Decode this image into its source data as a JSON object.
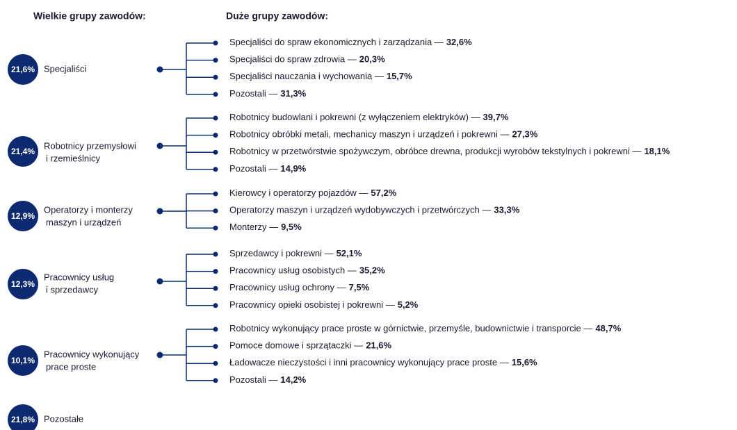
{
  "header": {
    "left": "Wielkie grupy zawodów:",
    "right": "Duże grupy zawodów:"
  },
  "groups": [
    {
      "pct": "21,6%",
      "name": [
        "Specjaliści"
      ],
      "items": [
        {
          "name": "Specjaliści do spraw ekonomicznych i zarządzania —",
          "value": "32,6%"
        },
        {
          "name": "Specjaliści do spraw zdrowia —",
          "value": "20,3%"
        },
        {
          "name": "Specjaliści nauczania i wychowania —",
          "value": "15,7%"
        },
        {
          "name": "Pozostali —",
          "value": "31,3%"
        }
      ]
    },
    {
      "pct": "21,4%",
      "name": [
        "Robotnicy przemysłowi",
        "i rzemieślnicy"
      ],
      "items": [
        {
          "name": "Robotnicy budowlani i pokrewni (z wyłączeniem elektryków) —",
          "value": "39,7%"
        },
        {
          "name": "Robotnicy obróbki metali, mechanicy maszyn i urządzeń i pokrewni —",
          "value": "27,3%"
        },
        {
          "name": "Robotnicy w przetwórstwie spożywczym, obróbce drewna, produkcji wyrobów tekstylnych i pokrewni —",
          "value": "18,1%"
        },
        {
          "name": "Pozostali —",
          "value": "14,9%"
        }
      ]
    },
    {
      "pct": "12,9%",
      "name": [
        "Operatorzy i monterzy",
        "maszyn i urządzeń"
      ],
      "items": [
        {
          "name": "Kierowcy i operatorzy pojazdów —",
          "value": "57,2%"
        },
        {
          "name": "Operatorzy maszyn i urządzeń wydobywczych i przetwórczych —",
          "value": "33,3%"
        },
        {
          "name": "Monterzy —",
          "value": "9,5%"
        }
      ]
    },
    {
      "pct": "12,3%",
      "name": [
        "Pracownicy usług",
        "i sprzedawcy"
      ],
      "items": [
        {
          "name": "Sprzedawcy i pokrewni —",
          "value": "52,1%"
        },
        {
          "name": "Pracownicy usług osobistych —",
          "value": "35,2%"
        },
        {
          "name": "Pracownicy usług ochrony —",
          "value": "7,5%"
        },
        {
          "name": "Pracownicy opieki osobistej i pokrewni —",
          "value": "5,2%"
        }
      ]
    },
    {
      "pct": "10,1%",
      "name": [
        "Pracownicy wykonujący",
        "prace proste"
      ],
      "items": [
        {
          "name": "Robotnicy wykonujący prace proste w górnictwie, przemyśle, budownictwie i transporcie —",
          "value": "48,7%"
        },
        {
          "name": "Pomoce domowe i sprzątaczki —",
          "value": "21,6%"
        },
        {
          "name": "Ładowacze nieczystości i inni pracownicy wykonujący prace proste —",
          "value": "15,6%"
        },
        {
          "name": "Pozostali —",
          "value": "14,2%"
        }
      ]
    },
    {
      "pct": "21,8%",
      "name": [
        "Pozostałe"
      ],
      "items": []
    }
  ]
}
